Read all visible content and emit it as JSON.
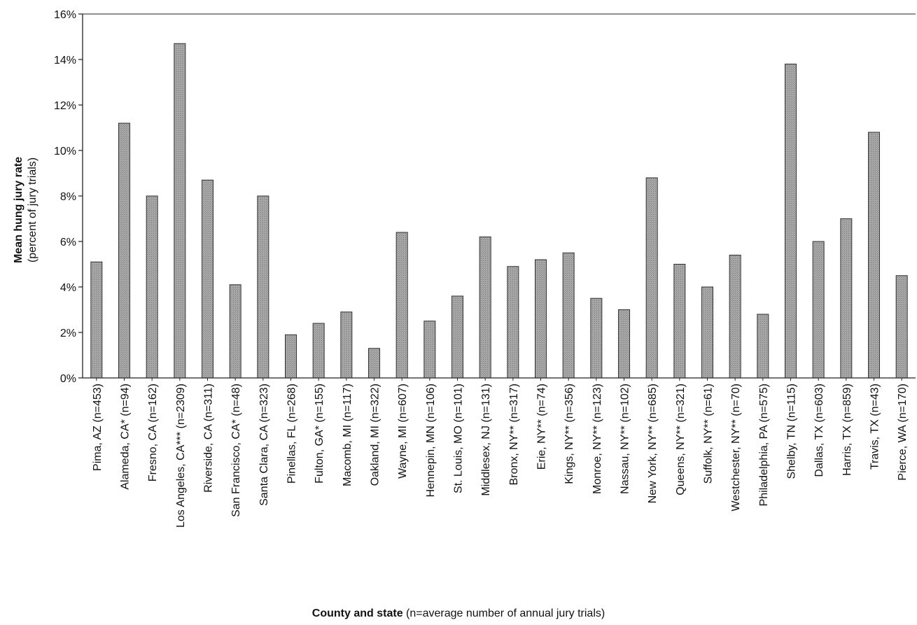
{
  "chart_data": {
    "type": "bar",
    "ylabel": "Mean hung jury rate",
    "ylabel_sub": "(percent of jury trials)",
    "xlabel": "County and state",
    "xlabel_sub": "(n=average number of annual jury trials)",
    "ylim": [
      0,
      16
    ],
    "yticks": [
      "0%",
      "2%",
      "4%",
      "6%",
      "8%",
      "10%",
      "12%",
      "14%",
      "16%"
    ],
    "grid": false,
    "bar_color": "#a9a9a9",
    "categories": [
      "Pima, AZ (n=453)",
      "Alameda, CA* (n=94)",
      "Fresno, CA (n=162)",
      "Los Angeles, CA*** (n=2309)",
      "Riverside, CA (n=311)",
      "San Francisco, CA* (n=48)",
      "Santa Clara, CA (n=323)",
      "Pinellas, FL (n=268)",
      "Fulton, GA* (n=155)",
      "Macomb, MI (n=117)",
      "Oakland, MI (n=322)",
      "Wayne, MI (n=607)",
      "Hennepin, MN (n=106)",
      "St. Louis, MO (n=101)",
      "Middlesex, NJ (n=131)",
      "Bronx, NY** (n=317)",
      "Erie, NY** (n=74)",
      "Kings, NY** (n=356)",
      "Monroe, NY** (n=123)",
      "Nassau, NY** (n=102)",
      "New York, NY** (n=685)",
      "Queens, NY** (n=321)",
      "Suffolk, NY** (n=61)",
      "Westchester, NY** (n=70)",
      "Philadelphia, PA (n=575)",
      "Shelby, TN (n=115)",
      "Dallas, TX (n=603)",
      "Harris, TX (n=859)",
      "Travis, TX (n=43)",
      "Pierce, WA (n=170)"
    ],
    "values": [
      5.1,
      11.2,
      8.0,
      14.7,
      8.7,
      4.1,
      8.0,
      1.9,
      2.4,
      2.9,
      1.3,
      6.4,
      2.5,
      3.6,
      6.2,
      4.9,
      5.2,
      5.5,
      3.5,
      3.0,
      8.8,
      5.0,
      4.0,
      5.4,
      2.8,
      13.8,
      6.0,
      7.0,
      10.8,
      4.5
    ]
  }
}
